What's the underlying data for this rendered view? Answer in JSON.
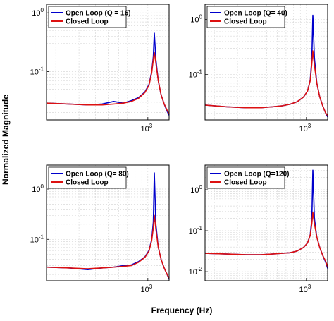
{
  "figure": {
    "xlabel": "Frequency (Hz)",
    "ylabel": "Normalized Magnitude"
  },
  "chart_data": [
    {
      "type": "line",
      "xscale": "log",
      "yscale": "log",
      "xlim": [
        170,
        1450
      ],
      "ylim": [
        0.015,
        1.4
      ],
      "xticks": [
        {
          "value": 1000,
          "base": "10",
          "exp": "3"
        }
      ],
      "yticks": [
        {
          "value": 1,
          "base": "10",
          "exp": "0"
        },
        {
          "value": 0.1,
          "base": "10",
          "exp": "-1"
        }
      ],
      "grid": true,
      "legend": "top-left",
      "series": [
        {
          "name": "Open Loop (Q = 16)",
          "color": "#0000cc",
          "x": [
            170,
            250,
            350,
            450,
            550,
            650,
            750,
            850,
            950,
            1020,
            1070,
            1100,
            1120,
            1150,
            1200,
            1260,
            1330,
            1400,
            1450
          ],
          "y": [
            0.029,
            0.028,
            0.027,
            0.028,
            0.031,
            0.029,
            0.032,
            0.036,
            0.045,
            0.06,
            0.1,
            0.18,
            0.45,
            0.16,
            0.07,
            0.04,
            0.028,
            0.021,
            0.018
          ]
        },
        {
          "name": "Closed Loop",
          "color": "#dd1111",
          "x": [
            170,
            250,
            350,
            450,
            550,
            650,
            750,
            850,
            950,
            1020,
            1070,
            1100,
            1120,
            1150,
            1200,
            1260,
            1330,
            1400,
            1450
          ],
          "y": [
            0.029,
            0.028,
            0.027,
            0.027,
            0.028,
            0.029,
            0.031,
            0.035,
            0.044,
            0.058,
            0.095,
            0.16,
            0.21,
            0.14,
            0.07,
            0.04,
            0.028,
            0.022,
            0.019
          ]
        }
      ]
    },
    {
      "type": "line",
      "xscale": "log",
      "yscale": "log",
      "xlim": [
        170,
        1450
      ],
      "ylim": [
        0.015,
        1.9
      ],
      "xticks": [
        {
          "value": 1000,
          "base": "10",
          "exp": "3"
        }
      ],
      "yticks": [
        {
          "value": 1,
          "base": "10",
          "exp": "0"
        },
        {
          "value": 0.1,
          "base": "10",
          "exp": "-1"
        }
      ],
      "grid": true,
      "legend": "top-left",
      "series": [
        {
          "name": "Open Loop (Q= 40)",
          "color": "#0000cc",
          "x": [
            170,
            250,
            350,
            450,
            550,
            650,
            750,
            850,
            950,
            1020,
            1070,
            1100,
            1120,
            1150,
            1200,
            1260,
            1330,
            1400,
            1450
          ],
          "y": [
            0.028,
            0.026,
            0.025,
            0.025,
            0.026,
            0.027,
            0.029,
            0.032,
            0.039,
            0.05,
            0.08,
            0.2,
            1.2,
            0.2,
            0.07,
            0.04,
            0.027,
            0.02,
            0.017
          ]
        },
        {
          "name": "Closed Loop",
          "color": "#dd1111",
          "x": [
            170,
            250,
            350,
            450,
            550,
            650,
            750,
            850,
            950,
            1020,
            1070,
            1100,
            1120,
            1150,
            1200,
            1260,
            1330,
            1400,
            1450
          ],
          "y": [
            0.028,
            0.026,
            0.025,
            0.025,
            0.026,
            0.027,
            0.029,
            0.032,
            0.039,
            0.05,
            0.078,
            0.16,
            0.27,
            0.15,
            0.07,
            0.04,
            0.027,
            0.02,
            0.018
          ]
        }
      ]
    },
    {
      "type": "line",
      "xscale": "log",
      "yscale": "log",
      "xlim": [
        170,
        1450
      ],
      "ylim": [
        0.015,
        3.0
      ],
      "xticks": [
        {
          "value": 1000,
          "base": "10",
          "exp": "3"
        }
      ],
      "yticks": [
        {
          "value": 1,
          "base": "10",
          "exp": "0"
        },
        {
          "value": 0.1,
          "base": "10",
          "exp": "-1"
        }
      ],
      "grid": true,
      "legend": "top-left",
      "series": [
        {
          "name": "Open Loop (Q= 80)",
          "color": "#0000cc",
          "x": [
            170,
            250,
            350,
            450,
            550,
            650,
            750,
            850,
            950,
            1020,
            1070,
            1100,
            1120,
            1150,
            1200,
            1260,
            1330,
            1400,
            1450
          ],
          "y": [
            0.028,
            0.027,
            0.025,
            0.027,
            0.028,
            0.03,
            0.031,
            0.036,
            0.045,
            0.06,
            0.1,
            0.22,
            2.1,
            0.2,
            0.07,
            0.04,
            0.027,
            0.02,
            0.016
          ]
        },
        {
          "name": "Closed Loop",
          "color": "#dd1111",
          "x": [
            170,
            250,
            350,
            450,
            550,
            650,
            750,
            850,
            950,
            1020,
            1070,
            1100,
            1120,
            1150,
            1200,
            1260,
            1330,
            1400,
            1450
          ],
          "y": [
            0.028,
            0.027,
            0.026,
            0.027,
            0.028,
            0.029,
            0.03,
            0.035,
            0.044,
            0.058,
            0.095,
            0.17,
            0.3,
            0.16,
            0.07,
            0.04,
            0.027,
            0.02,
            0.017
          ]
        }
      ]
    },
    {
      "type": "line",
      "xscale": "log",
      "yscale": "log",
      "xlim": [
        170,
        1450
      ],
      "ylim": [
        0.006,
        4.0
      ],
      "xticks": [
        {
          "value": 1000,
          "base": "10",
          "exp": "3"
        }
      ],
      "yticks": [
        {
          "value": 1,
          "base": "10",
          "exp": "0"
        },
        {
          "value": 0.1,
          "base": "10",
          "exp": "-1"
        },
        {
          "value": 0.01,
          "base": "10",
          "exp": "-2"
        }
      ],
      "grid": true,
      "legend": "top-left",
      "series": [
        {
          "name": "Open Loop (Q=120)",
          "color": "#0000cc",
          "x": [
            170,
            250,
            350,
            450,
            550,
            650,
            750,
            850,
            950,
            1020,
            1070,
            1100,
            1120,
            1150,
            1200,
            1260,
            1330,
            1400,
            1450
          ],
          "y": [
            0.028,
            0.027,
            0.026,
            0.026,
            0.027,
            0.028,
            0.029,
            0.032,
            0.039,
            0.05,
            0.08,
            0.2,
            3.0,
            0.2,
            0.07,
            0.04,
            0.025,
            0.017,
            0.012
          ]
        },
        {
          "name": "Closed Loop",
          "color": "#dd1111",
          "x": [
            170,
            250,
            350,
            450,
            550,
            650,
            750,
            850,
            950,
            1020,
            1070,
            1100,
            1120,
            1150,
            1200,
            1260,
            1330,
            1400,
            1450
          ],
          "y": [
            0.028,
            0.027,
            0.026,
            0.026,
            0.027,
            0.028,
            0.029,
            0.032,
            0.039,
            0.05,
            0.078,
            0.15,
            0.28,
            0.15,
            0.07,
            0.04,
            0.025,
            0.018,
            0.013
          ]
        }
      ]
    }
  ]
}
